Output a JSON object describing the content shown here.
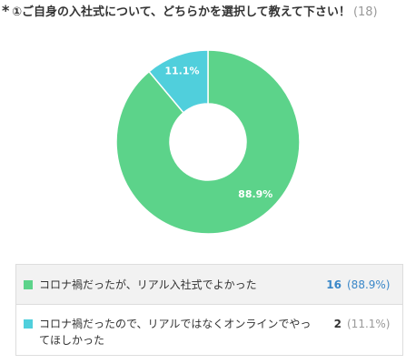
{
  "question": {
    "required_mark": "*",
    "title": "①ご自身の入社式について、どちらかを選択して教えて下さい！",
    "response_count": "(18)"
  },
  "chart_data": {
    "type": "pie",
    "donut": true,
    "categories": [
      "コロナ禍だったが、リアル入社式でよかった",
      "コロナ禍だったので、リアルではなくオンラインでやってほしかった"
    ],
    "values": [
      16,
      2
    ],
    "percent_labels": [
      "88.9%",
      "11.1%"
    ],
    "colors": [
      "#5cd38a",
      "#50cfdc"
    ]
  },
  "legend": [
    {
      "label": "コロナ禍だったが、リアル入社式でよかった",
      "count": "16",
      "percent": "(88.9%)",
      "color": "#5cd38a"
    },
    {
      "label": "コロナ禍だったので、リアルではなくオンラインでやってほしかった",
      "count": "2",
      "percent": "(11.1%)",
      "color": "#50cfdc"
    }
  ]
}
